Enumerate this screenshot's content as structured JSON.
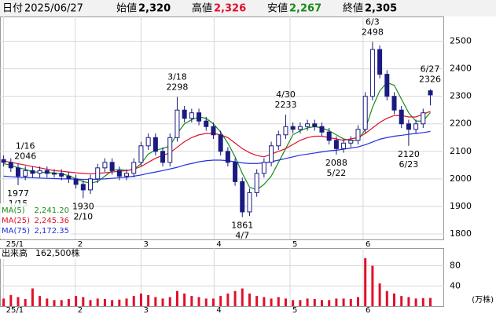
{
  "header": {
    "date_label": "日付",
    "date": "2025/06/27",
    "items": [
      {
        "label": "始値",
        "value": 2320,
        "value_label": "2,320",
        "color": "#000000"
      },
      {
        "label": "高値",
        "value": 2326,
        "value_label": "2,326",
        "color": "#e0102a"
      },
      {
        "label": "安値",
        "value": 2267,
        "value_label": "2,267",
        "color": "#1a8a1a"
      },
      {
        "label": "終値",
        "value": 2305,
        "value_label": "2,305",
        "color": "#000000"
      }
    ]
  },
  "chart_data": {
    "type": "candlestick",
    "xlim": [
      -0.5,
      60.9
    ],
    "xticks": [
      {
        "value": 0,
        "label": "25/1"
      },
      {
        "value": 9.9,
        "label": "2"
      },
      {
        "value": 19,
        "label": "3"
      },
      {
        "value": 29.1,
        "label": "4"
      },
      {
        "value": 39.6,
        "label": "5"
      },
      {
        "value": 49.7,
        "label": "6"
      }
    ],
    "ylim": [
      1780,
      2590
    ],
    "yticks": [
      1800,
      1900,
      2000,
      2100,
      2200,
      2300,
      2400,
      2500
    ],
    "grid": true,
    "candle_color": "#1a1a80",
    "open": [
      2070,
      2060,
      2040,
      2010,
      2030,
      2020,
      2030,
      2020,
      2020,
      2010,
      2000,
      1980,
      1960,
      2000,
      2040,
      2060,
      2030,
      2010,
      2020,
      2060,
      2120,
      2150,
      2100,
      2060,
      2150,
      2250,
      2220,
      2240,
      2210,
      2190,
      2160,
      2100,
      2060,
      1990,
      1880,
      1950,
      2020,
      2060,
      2120,
      2160,
      2190,
      2180,
      2190,
      2200,
      2190,
      2170,
      2140,
      2110,
      2130,
      2140,
      2180,
      2300,
      2470,
      2380,
      2300,
      2250,
      2200,
      2180,
      2200,
      2320
    ],
    "high": [
      2085,
      2075,
      2055,
      2046,
      2045,
      2045,
      2045,
      2035,
      2035,
      2025,
      2015,
      1995,
      2015,
      2055,
      2075,
      2075,
      2045,
      2035,
      2075,
      2135,
      2165,
      2165,
      2115,
      2165,
      2298,
      2265,
      2255,
      2255,
      2225,
      2205,
      2175,
      2115,
      2075,
      2005,
      1965,
      2035,
      2075,
      2135,
      2175,
      2233,
      2205,
      2205,
      2215,
      2215,
      2205,
      2185,
      2155,
      2145,
      2155,
      2195,
      2315,
      2498,
      2485,
      2395,
      2315,
      2265,
      2215,
      2215,
      2255,
      2326
    ],
    "low": [
      2045,
      2025,
      1977,
      1995,
      2005,
      2005,
      2005,
      2005,
      1995,
      1985,
      1965,
      1930,
      1945,
      1985,
      2025,
      2015,
      1995,
      1995,
      2005,
      2045,
      2105,
      2085,
      2045,
      2045,
      2135,
      2205,
      2205,
      2195,
      2175,
      2145,
      2085,
      2045,
      1975,
      1861,
      1865,
      1935,
      2005,
      2045,
      2105,
      2145,
      2165,
      2165,
      2175,
      2175,
      2155,
      2125,
      2088,
      2095,
      2115,
      2125,
      2165,
      2285,
      2365,
      2285,
      2235,
      2185,
      2120,
      2165,
      2185,
      2267
    ],
    "close": [
      2060,
      2040,
      2010,
      2030,
      2020,
      2030,
      2020,
      2020,
      2010,
      2000,
      1980,
      1960,
      2000,
      2040,
      2060,
      2030,
      2010,
      2020,
      2060,
      2120,
      2150,
      2100,
      2060,
      2150,
      2250,
      2220,
      2240,
      2210,
      2190,
      2160,
      2100,
      2060,
      1990,
      1880,
      1950,
      2020,
      2060,
      2120,
      2160,
      2190,
      2180,
      2190,
      2200,
      2190,
      2170,
      2140,
      2110,
      2130,
      2140,
      2180,
      2300,
      2470,
      2380,
      2300,
      2250,
      2200,
      2180,
      2200,
      2240,
      2305
    ],
    "ma": [
      {
        "name": "MA(5)",
        "color": "#1a8a1a",
        "value_label": "2,241.20",
        "values": [
          2055,
          2050,
          2040,
          2035,
          2025,
          2025,
          2022,
          2022,
          2018,
          2012,
          2000,
          1990,
          1985,
          1990,
          2010,
          2030,
          2035,
          2030,
          2035,
          2055,
          2090,
          2105,
          2110,
          2120,
          2165,
          2200,
          2215,
          2225,
          2220,
          2200,
          2170,
          2130,
          2080,
          2020,
          1970,
          1960,
          1980,
          2010,
          2060,
          2110,
          2160,
          2175,
          2185,
          2190,
          2185,
          2175,
          2160,
          2145,
          2140,
          2140,
          2180,
          2260,
          2320,
          2350,
          2340,
          2290,
          2240,
          2210,
          2210,
          2241.2
        ]
      },
      {
        "name": "MA(25)",
        "color": "#e0102a",
        "value_label": "2,245.36",
        "values": [
          2065,
          2060,
          2055,
          2050,
          2045,
          2040,
          2035,
          2030,
          2028,
          2025,
          2022,
          2020,
          2018,
          2020,
          2022,
          2025,
          2028,
          2030,
          2035,
          2045,
          2060,
          2075,
          2085,
          2095,
          2115,
          2135,
          2150,
          2160,
          2165,
          2165,
          2160,
          2150,
          2130,
          2110,
          2095,
          2085,
          2080,
          2090,
          2100,
          2110,
          2125,
          2140,
          2150,
          2155,
          2155,
          2150,
          2145,
          2140,
          2145,
          2150,
          2165,
          2185,
          2205,
          2220,
          2230,
          2230,
          2225,
          2225,
          2235,
          2245.36
        ]
      },
      {
        "name": "MA(75)",
        "color": "#2030e0",
        "value_label": "2,172.35",
        "values": [
          2010,
          2008,
          2006,
          2005,
          2004,
          2003,
          2002,
          2001,
          2000,
          2000,
          1999,
          1998,
          1998,
          1999,
          2000,
          2002,
          2004,
          2006,
          2010,
          2014,
          2020,
          2025,
          2030,
          2036,
          2042,
          2050,
          2056,
          2062,
          2066,
          2068,
          2068,
          2066,
          2062,
          2058,
          2056,
          2056,
          2058,
          2062,
          2068,
          2074,
          2080,
          2086,
          2090,
          2094,
          2098,
          2102,
          2104,
          2108,
          2112,
          2116,
          2124,
          2134,
          2144,
          2150,
          2155,
          2158,
          2162,
          2165,
          2168,
          2172.35
        ]
      }
    ],
    "annotations": [
      {
        "date": "1/16",
        "value": 2046
      },
      {
        "date": "1/15",
        "value": 1977
      },
      {
        "date": "2/10",
        "value": 1930
      },
      {
        "date": "3/18",
        "value": 2298
      },
      {
        "date": "4/7",
        "value": 1861
      },
      {
        "date": "4/30",
        "value": 2233
      },
      {
        "date": "5/22",
        "value": 2088
      },
      {
        "date": "6/3",
        "value": 2498
      },
      {
        "date": "6/23",
        "value": 2120
      },
      {
        "date": "6/27",
        "value": 2326
      }
    ],
    "volume": {
      "title": "出来高",
      "latest": 162500,
      "latest_label": "162,500株",
      "unit": "(万株)",
      "color": "#e0102a",
      "ylim": [
        0,
        115
      ],
      "yticks": [
        40,
        80
      ],
      "values": [
        15,
        22,
        18,
        14,
        35,
        20,
        15,
        12,
        12,
        14,
        20,
        18,
        12,
        15,
        14,
        12,
        13,
        15,
        20,
        25,
        22,
        18,
        15,
        18,
        30,
        25,
        20,
        18,
        15,
        15,
        20,
        25,
        30,
        35,
        25,
        20,
        18,
        15,
        18,
        15,
        12,
        12,
        15,
        14,
        12,
        12,
        15,
        15,
        14,
        18,
        95,
        80,
        45,
        30,
        25,
        20,
        18,
        15,
        16,
        16.25
      ]
    }
  }
}
